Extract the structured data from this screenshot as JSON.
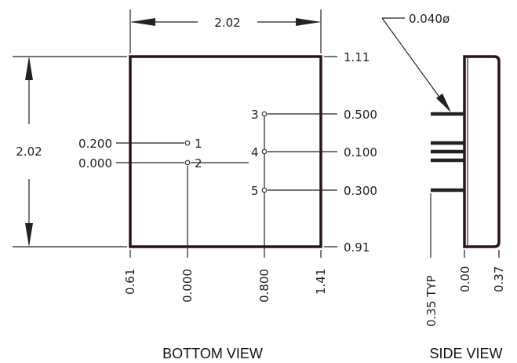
{
  "bottom_view": {
    "width_dim": "2.02",
    "height_dim": "2.02",
    "right_top": "1.11",
    "right_bottom": "0.91",
    "left_200": "0.200",
    "left_000": "0.000",
    "right_pin3": "0.500",
    "right_pin4": "0.100",
    "right_pin5": "0.300",
    "bottom_left": "0.61",
    "bottom_000": "0.000",
    "bottom_800": "0.800",
    "bottom_right": "1.41",
    "pins": [
      "1",
      "2",
      "3",
      "4",
      "5"
    ],
    "caption": "BOTTOM VIEW"
  },
  "side_view": {
    "pin_dia": "0.040ø",
    "pin_len": "0.35  TYP",
    "base": "0.00",
    "height": "0.37",
    "caption": "SIDE VIEW"
  }
}
